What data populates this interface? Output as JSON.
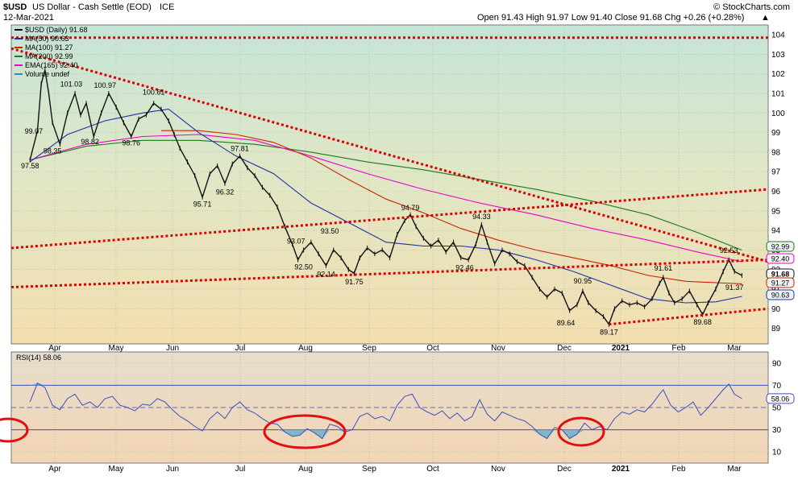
{
  "header": {
    "symbol": "$USD",
    "name": "US Dollar - Cash Settle (EOD)",
    "exchange": "ICE",
    "date": "12-Mar-2021",
    "ohlc_label": "Open 91.43  High 91.97  Low 91.40  Close 91.68  Chg +0.26 (+0.28%)",
    "ohlc_arrow": "▲",
    "copyright": "© StockCharts.com"
  },
  "legend": [
    {
      "text": "$USD (Daily) 91.68",
      "color": "#000000"
    },
    {
      "text": "MA(50) 90.63",
      "color": "#1f2fa8"
    },
    {
      "text": "MA(100) 91.27",
      "color": "#cc2200"
    },
    {
      "text": "MA(200) 92.99",
      "color": "#1a7a1a"
    },
    {
      "text": "EMA(165) 92.40",
      "color": "#ee00cc"
    },
    {
      "text": "Volume undef",
      "color": "#3388cc"
    }
  ],
  "rsi_legend": "RSI(14) 58.06",
  "colors": {
    "price": "#111111",
    "ma50": "#1f2fa8",
    "ma100": "#cc2200",
    "ma200": "#1a7a1a",
    "ema165": "#ee00cc",
    "trend": "#dd0000",
    "rsi": "#3a4fc0"
  },
  "chart_data": {
    "type": "line",
    "x_labels": [
      "Apr",
      "May",
      "Jun",
      "Jul",
      "Aug",
      "Sep",
      "Oct",
      "Nov",
      "Dec",
      "2021",
      "Feb",
      "Mar"
    ],
    "price_axis": {
      "ylim": [
        88.2,
        104.5
      ],
      "ticks": [
        89,
        90,
        91,
        92,
        93,
        94,
        95,
        96,
        97,
        98,
        99,
        100,
        101,
        102,
        103,
        104
      ],
      "right_badges": [
        {
          "label": "92.99",
          "value": 92.99,
          "color": "#1a7a1a"
        },
        {
          "label": "92.40",
          "value": 92.4,
          "color": "#ee00cc"
        },
        {
          "label": "91.68",
          "value": 91.68,
          "color": "#111111"
        },
        {
          "label": "91.27",
          "value": 91.27,
          "color": "#cc2200"
        },
        {
          "label": "90.63",
          "value": 90.63,
          "color": "#1f2fa8"
        }
      ]
    },
    "price_series": [
      {
        "t": 0,
        "v": 97.6
      },
      {
        "t": 2,
        "v": 99.1
      },
      {
        "t": 3,
        "v": 101.5
      },
      {
        "t": 4,
        "v": 102.2
      },
      {
        "t": 5,
        "v": 101.0
      },
      {
        "t": 6,
        "v": 99.5
      },
      {
        "t": 8,
        "v": 98.4
      },
      {
        "t": 10,
        "v": 100.0
      },
      {
        "t": 12,
        "v": 101.0
      },
      {
        "t": 13.5,
        "v": 99.9
      },
      {
        "t": 15,
        "v": 100.5
      },
      {
        "t": 17,
        "v": 98.8
      },
      {
        "t": 19,
        "v": 100.0
      },
      {
        "t": 21,
        "v": 101.0
      },
      {
        "t": 23,
        "v": 100.3
      },
      {
        "t": 25,
        "v": 99.5
      },
      {
        "t": 27,
        "v": 98.8
      },
      {
        "t": 29,
        "v": 99.7
      },
      {
        "t": 31,
        "v": 99.9
      },
      {
        "t": 33,
        "v": 100.5
      },
      {
        "t": 35,
        "v": 100.2
      },
      {
        "t": 37,
        "v": 99.6
      },
      {
        "t": 38.5,
        "v": 98.9
      },
      {
        "t": 40,
        "v": 98.2
      },
      {
        "t": 42,
        "v": 97.5
      },
      {
        "t": 44,
        "v": 96.8
      },
      {
        "t": 46,
        "v": 95.7
      },
      {
        "t": 48,
        "v": 96.9
      },
      {
        "t": 50,
        "v": 97.3
      },
      {
        "t": 52,
        "v": 96.4
      },
      {
        "t": 54,
        "v": 97.4
      },
      {
        "t": 56,
        "v": 97.8
      },
      {
        "t": 58,
        "v": 97.2
      },
      {
        "t": 60,
        "v": 96.8
      },
      {
        "t": 62,
        "v": 96.2
      },
      {
        "t": 64,
        "v": 95.8
      },
      {
        "t": 66,
        "v": 95.2
      },
      {
        "t": 68,
        "v": 94.2
      },
      {
        "t": 70,
        "v": 93.3
      },
      {
        "t": 71.5,
        "v": 92.5
      },
      {
        "t": 73,
        "v": 93.0
      },
      {
        "t": 75,
        "v": 93.4
      },
      {
        "t": 77,
        "v": 92.8
      },
      {
        "t": 79,
        "v": 92.2
      },
      {
        "t": 81,
        "v": 93.0
      },
      {
        "t": 83,
        "v": 92.6
      },
      {
        "t": 85,
        "v": 92.0
      },
      {
        "t": 86.5,
        "v": 91.8
      },
      {
        "t": 88,
        "v": 92.6
      },
      {
        "t": 90,
        "v": 93.1
      },
      {
        "t": 92,
        "v": 92.8
      },
      {
        "t": 94,
        "v": 93.0
      },
      {
        "t": 96,
        "v": 92.6
      },
      {
        "t": 98,
        "v": 93.8
      },
      {
        "t": 100,
        "v": 94.5
      },
      {
        "t": 101.5,
        "v": 94.8
      },
      {
        "t": 103,
        "v": 94.2
      },
      {
        "t": 105,
        "v": 93.6
      },
      {
        "t": 107,
        "v": 93.2
      },
      {
        "t": 109,
        "v": 93.5
      },
      {
        "t": 111,
        "v": 92.9
      },
      {
        "t": 113,
        "v": 93.4
      },
      {
        "t": 115,
        "v": 92.6
      },
      {
        "t": 117,
        "v": 92.5
      },
      {
        "t": 119,
        "v": 93.3
      },
      {
        "t": 120.5,
        "v": 94.3
      },
      {
        "t": 122,
        "v": 93.4
      },
      {
        "t": 124,
        "v": 92.3
      },
      {
        "t": 126,
        "v": 93.0
      },
      {
        "t": 128,
        "v": 92.8
      },
      {
        "t": 130,
        "v": 92.4
      },
      {
        "t": 132,
        "v": 92.2
      },
      {
        "t": 134,
        "v": 91.6
      },
      {
        "t": 136,
        "v": 91.0
      },
      {
        "t": 138,
        "v": 90.6
      },
      {
        "t": 140,
        "v": 91.0
      },
      {
        "t": 142,
        "v": 90.8
      },
      {
        "t": 144,
        "v": 89.9
      },
      {
        "t": 146,
        "v": 90.2
      },
      {
        "t": 147.5,
        "v": 90.9
      },
      {
        "t": 149,
        "v": 90.3
      },
      {
        "t": 151,
        "v": 89.9
      },
      {
        "t": 153,
        "v": 89.6
      },
      {
        "t": 154.5,
        "v": 89.2
      },
      {
        "t": 156,
        "v": 90.0
      },
      {
        "t": 158,
        "v": 90.4
      },
      {
        "t": 160,
        "v": 90.2
      },
      {
        "t": 162,
        "v": 90.3
      },
      {
        "t": 164,
        "v": 90.1
      },
      {
        "t": 166,
        "v": 90.5
      },
      {
        "t": 168,
        "v": 91.3
      },
      {
        "t": 169,
        "v": 91.6
      },
      {
        "t": 170.5,
        "v": 90.8
      },
      {
        "t": 172,
        "v": 90.3
      },
      {
        "t": 174,
        "v": 90.5
      },
      {
        "t": 176,
        "v": 90.9
      },
      {
        "t": 178,
        "v": 90.2
      },
      {
        "t": 179.5,
        "v": 89.7
      },
      {
        "t": 181,
        "v": 90.3
      },
      {
        "t": 183,
        "v": 91.0
      },
      {
        "t": 185,
        "v": 91.9
      },
      {
        "t": 186.5,
        "v": 92.5
      },
      {
        "t": 188,
        "v": 91.9
      },
      {
        "t": 190,
        "v": 91.7
      }
    ],
    "ma50": [
      {
        "t": 0,
        "v": 97.5
      },
      {
        "t": 10,
        "v": 98.9
      },
      {
        "t": 20,
        "v": 99.6
      },
      {
        "t": 30,
        "v": 100.0
      },
      {
        "t": 37,
        "v": 100.2
      },
      {
        "t": 45,
        "v": 99.0
      },
      {
        "t": 55,
        "v": 97.8
      },
      {
        "t": 65,
        "v": 96.9
      },
      {
        "t": 75,
        "v": 95.4
      },
      {
        "t": 85,
        "v": 94.4
      },
      {
        "t": 95,
        "v": 93.4
      },
      {
        "t": 105,
        "v": 93.2
      },
      {
        "t": 115,
        "v": 93.2
      },
      {
        "t": 125,
        "v": 93.0
      },
      {
        "t": 135,
        "v": 92.5
      },
      {
        "t": 145,
        "v": 91.9
      },
      {
        "t": 155,
        "v": 91.2
      },
      {
        "t": 165,
        "v": 90.5
      },
      {
        "t": 175,
        "v": 90.3
      },
      {
        "t": 183,
        "v": 90.35
      },
      {
        "t": 190,
        "v": 90.63
      }
    ],
    "ma100": [
      {
        "t": 35,
        "v": 99.1
      },
      {
        "t": 45,
        "v": 99.1
      },
      {
        "t": 55,
        "v": 98.9
      },
      {
        "t": 65,
        "v": 98.5
      },
      {
        "t": 75,
        "v": 97.7
      },
      {
        "t": 85,
        "v": 96.6
      },
      {
        "t": 95,
        "v": 95.6
      },
      {
        "t": 105,
        "v": 94.9
      },
      {
        "t": 115,
        "v": 94.1
      },
      {
        "t": 125,
        "v": 93.5
      },
      {
        "t": 135,
        "v": 93.0
      },
      {
        "t": 145,
        "v": 92.6
      },
      {
        "t": 155,
        "v": 92.2
      },
      {
        "t": 165,
        "v": 91.7
      },
      {
        "t": 175,
        "v": 91.4
      },
      {
        "t": 190,
        "v": 91.27
      }
    ],
    "ma200": [
      {
        "t": 0,
        "v": 97.6
      },
      {
        "t": 15,
        "v": 98.3
      },
      {
        "t": 30,
        "v": 98.6
      },
      {
        "t": 45,
        "v": 98.6
      },
      {
        "t": 60,
        "v": 98.4
      },
      {
        "t": 75,
        "v": 98.0
      },
      {
        "t": 90,
        "v": 97.5
      },
      {
        "t": 105,
        "v": 97.1
      },
      {
        "t": 120,
        "v": 96.6
      },
      {
        "t": 135,
        "v": 96.1
      },
      {
        "t": 150,
        "v": 95.5
      },
      {
        "t": 165,
        "v": 94.8
      },
      {
        "t": 178,
        "v": 93.9
      },
      {
        "t": 190,
        "v": 92.99
      }
    ],
    "ema165": [
      {
        "t": 0,
        "v": 97.6
      },
      {
        "t": 15,
        "v": 98.4
      },
      {
        "t": 30,
        "v": 98.8
      },
      {
        "t": 45,
        "v": 98.9
      },
      {
        "t": 60,
        "v": 98.6
      },
      {
        "t": 75,
        "v": 97.8
      },
      {
        "t": 90,
        "v": 96.9
      },
      {
        "t": 105,
        "v": 96.1
      },
      {
        "t": 120,
        "v": 95.4
      },
      {
        "t": 135,
        "v": 94.8
      },
      {
        "t": 150,
        "v": 94.1
      },
      {
        "t": 165,
        "v": 93.5
      },
      {
        "t": 178,
        "v": 92.9
      },
      {
        "t": 190,
        "v": 92.4
      }
    ],
    "trendlines": [
      {
        "t1": -5,
        "v1": 103.3,
        "t2": 197,
        "v2": 92.4
      },
      {
        "t1": -5,
        "v1": 93.1,
        "t2": 197,
        "v2": 96.1
      },
      {
        "t1": -5,
        "v1": 91.1,
        "t2": 197,
        "v2": 92.5
      },
      {
        "t1": 154.5,
        "v1": 89.2,
        "t2": 197,
        "v2": 90.0
      },
      {
        "t1": -5,
        "v1": 103.85,
        "t2": 197,
        "v2": 103.85
      }
    ],
    "price_annotations": [
      {
        "label": "99.07",
        "t": 1,
        "v": 99.07,
        "dy": 3
      },
      {
        "label": "97.58",
        "t": 0,
        "v": 97.58,
        "dy": 10
      },
      {
        "label": "98.35",
        "t": 6,
        "v": 98.35,
        "dy": 10
      },
      {
        "label": "101.03",
        "t": 11,
        "v": 101.03,
        "dy": -8
      },
      {
        "label": "98.82",
        "t": 16,
        "v": 98.82,
        "dy": 10
      },
      {
        "label": "100.97",
        "t": 20,
        "v": 100.97,
        "dy": -8
      },
      {
        "label": "98.76",
        "t": 27,
        "v": 98.76,
        "dy": 10
      },
      {
        "label": "100.61",
        "t": 33,
        "v": 100.61,
        "dy": -8
      },
      {
        "label": "95.71",
        "t": 46,
        "v": 95.71,
        "dy": 12
      },
      {
        "label": "96.32",
        "t": 52,
        "v": 96.32,
        "dy": 12
      },
      {
        "label": "97.81",
        "t": 56,
        "v": 97.81,
        "dy": -6
      },
      {
        "label": "93.07",
        "t": 71,
        "v": 93.07,
        "dy": -6
      },
      {
        "label": "92.50",
        "t": 73,
        "v": 92.5,
        "dy": 12
      },
      {
        "label": "93.50",
        "t": 80,
        "v": 93.5,
        "dy": -8
      },
      {
        "label": "92.14",
        "t": 79,
        "v": 92.14,
        "dy": 12
      },
      {
        "label": "91.75",
        "t": 86.5,
        "v": 91.75,
        "dy": 12
      },
      {
        "label": "94.79",
        "t": 101.5,
        "v": 94.79,
        "dy": -6
      },
      {
        "label": "92.46",
        "t": 116,
        "v": 92.46,
        "dy": 12
      },
      {
        "label": "94.33",
        "t": 120.5,
        "v": 94.33,
        "dy": -6
      },
      {
        "label": "89.64",
        "t": 143,
        "v": 89.64,
        "dy": 12
      },
      {
        "label": "90.95",
        "t": 147.5,
        "v": 90.95,
        "dy": -8
      },
      {
        "label": "89.17",
        "t": 154.5,
        "v": 89.17,
        "dy": 12
      },
      {
        "label": "91.61",
        "t": 169,
        "v": 91.61,
        "dy": -8
      },
      {
        "label": "89.68",
        "t": 179.5,
        "v": 89.68,
        "dy": 12
      },
      {
        "label": "92.53",
        "t": 186.5,
        "v": 92.53,
        "dy": -8
      },
      {
        "label": "91.37",
        "t": 188,
        "v": 91.37,
        "dy": 10
      }
    ],
    "rsi_axis": {
      "ylim": [
        0,
        100
      ],
      "ticks": [
        10,
        30,
        50,
        70,
        90
      ],
      "levels": [
        30,
        70
      ],
      "midline": 50,
      "current": {
        "label": "58.06",
        "value": 58.06
      }
    },
    "rsi_series": [
      {
        "t": 0,
        "v": 55
      },
      {
        "t": 2,
        "v": 72
      },
      {
        "t": 4,
        "v": 68
      },
      {
        "t": 6,
        "v": 52
      },
      {
        "t": 8,
        "v": 48
      },
      {
        "t": 10,
        "v": 58
      },
      {
        "t": 12,
        "v": 62
      },
      {
        "t": 14,
        "v": 52
      },
      {
        "t": 16,
        "v": 55
      },
      {
        "t": 18,
        "v": 50
      },
      {
        "t": 20,
        "v": 58
      },
      {
        "t": 22,
        "v": 60
      },
      {
        "t": 24,
        "v": 52
      },
      {
        "t": 26,
        "v": 50
      },
      {
        "t": 28,
        "v": 47
      },
      {
        "t": 30,
        "v": 53
      },
      {
        "t": 32,
        "v": 52
      },
      {
        "t": 34,
        "v": 58
      },
      {
        "t": 36,
        "v": 55
      },
      {
        "t": 38,
        "v": 48
      },
      {
        "t": 40,
        "v": 42
      },
      {
        "t": 42,
        "v": 38
      },
      {
        "t": 44,
        "v": 33
      },
      {
        "t": 46,
        "v": 29
      },
      {
        "t": 48,
        "v": 40
      },
      {
        "t": 50,
        "v": 46
      },
      {
        "t": 52,
        "v": 40
      },
      {
        "t": 54,
        "v": 50
      },
      {
        "t": 56,
        "v": 55
      },
      {
        "t": 58,
        "v": 48
      },
      {
        "t": 60,
        "v": 45
      },
      {
        "t": 62,
        "v": 40
      },
      {
        "t": 64,
        "v": 36
      },
      {
        "t": 66,
        "v": 35
      },
      {
        "t": 68,
        "v": 28
      },
      {
        "t": 70,
        "v": 24
      },
      {
        "t": 72,
        "v": 25
      },
      {
        "t": 74,
        "v": 31
      },
      {
        "t": 76,
        "v": 27
      },
      {
        "t": 78,
        "v": 22
      },
      {
        "t": 80,
        "v": 35
      },
      {
        "t": 82,
        "v": 33
      },
      {
        "t": 84,
        "v": 28
      },
      {
        "t": 86,
        "v": 30
      },
      {
        "t": 88,
        "v": 42
      },
      {
        "t": 90,
        "v": 45
      },
      {
        "t": 92,
        "v": 40
      },
      {
        "t": 94,
        "v": 42
      },
      {
        "t": 96,
        "v": 38
      },
      {
        "t": 98,
        "v": 52
      },
      {
        "t": 100,
        "v": 60
      },
      {
        "t": 102,
        "v": 62
      },
      {
        "t": 104,
        "v": 50
      },
      {
        "t": 106,
        "v": 46
      },
      {
        "t": 108,
        "v": 43
      },
      {
        "t": 110,
        "v": 47
      },
      {
        "t": 112,
        "v": 40
      },
      {
        "t": 114,
        "v": 45
      },
      {
        "t": 116,
        "v": 38
      },
      {
        "t": 118,
        "v": 42
      },
      {
        "t": 120,
        "v": 57
      },
      {
        "t": 122,
        "v": 44
      },
      {
        "t": 124,
        "v": 38
      },
      {
        "t": 126,
        "v": 46
      },
      {
        "t": 128,
        "v": 43
      },
      {
        "t": 130,
        "v": 40
      },
      {
        "t": 132,
        "v": 38
      },
      {
        "t": 134,
        "v": 33
      },
      {
        "t": 136,
        "v": 26
      },
      {
        "t": 138,
        "v": 22
      },
      {
        "t": 140,
        "v": 32
      },
      {
        "t": 142,
        "v": 30
      },
      {
        "t": 144,
        "v": 22
      },
      {
        "t": 146,
        "v": 26
      },
      {
        "t": 148,
        "v": 36
      },
      {
        "t": 150,
        "v": 30
      },
      {
        "t": 152,
        "v": 33
      },
      {
        "t": 154,
        "v": 30
      },
      {
        "t": 156,
        "v": 40
      },
      {
        "t": 158,
        "v": 46
      },
      {
        "t": 160,
        "v": 44
      },
      {
        "t": 162,
        "v": 48
      },
      {
        "t": 164,
        "v": 46
      },
      {
        "t": 166,
        "v": 53
      },
      {
        "t": 168,
        "v": 62
      },
      {
        "t": 169,
        "v": 66
      },
      {
        "t": 171,
        "v": 52
      },
      {
        "t": 173,
        "v": 46
      },
      {
        "t": 175,
        "v": 50
      },
      {
        "t": 177,
        "v": 55
      },
      {
        "t": 179,
        "v": 43
      },
      {
        "t": 181,
        "v": 50
      },
      {
        "t": 183,
        "v": 58
      },
      {
        "t": 185,
        "v": 66
      },
      {
        "t": 186.5,
        "v": 71
      },
      {
        "t": 188,
        "v": 62
      },
      {
        "t": 190,
        "v": 58
      }
    ]
  }
}
